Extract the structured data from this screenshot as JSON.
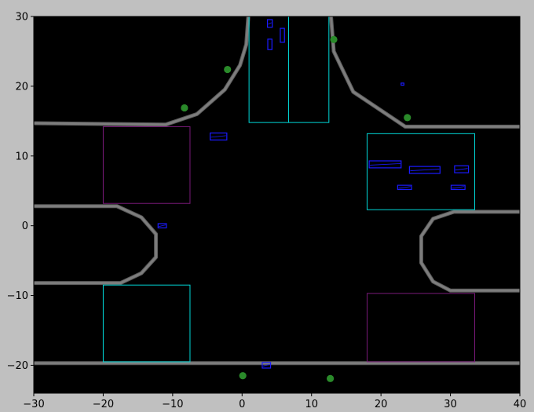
{
  "chart_data": {
    "type": "scatter",
    "title": "",
    "xlabel": "",
    "ylabel": "",
    "xlim": [
      -30,
      40
    ],
    "ylim": [
      -24,
      30
    ],
    "x_ticks": [
      -30,
      -20,
      -10,
      0,
      10,
      20,
      30,
      40
    ],
    "y_ticks": [
      -20,
      -10,
      0,
      10,
      20,
      30
    ],
    "grid": false,
    "legend": "none",
    "colors": {
      "figure_bg": "#c0c0c0",
      "axes_bg": "#000000",
      "road": "#7d7d7d",
      "road_edge": "#5a5a5a",
      "cyan_zone": "#00d8d8",
      "purple_zone": "#7a1a7a",
      "vehicle": "#1a1aff",
      "pedestrian": "#2a8a2a"
    },
    "road_edges": [
      {
        "name": "north-west-edge",
        "points": [
          [
            -30,
            14.7
          ],
          [
            -11,
            14.5
          ],
          [
            -6.5,
            16
          ],
          [
            -2.5,
            19.5
          ],
          [
            -0.3,
            23
          ],
          [
            0.6,
            26
          ],
          [
            0.9,
            30
          ]
        ]
      },
      {
        "name": "north-east-edge",
        "points": [
          [
            12.8,
            30
          ],
          [
            13.2,
            25
          ],
          [
            16,
            19.2
          ],
          [
            23.5,
            14.2
          ],
          [
            40,
            14.2
          ]
        ]
      },
      {
        "name": "west-mid-edge",
        "points": [
          [
            -30,
            2.8
          ],
          [
            -18,
            2.8
          ],
          [
            -14.5,
            1.2
          ],
          [
            -12.4,
            -1.2
          ],
          [
            -12.4,
            -4.5
          ],
          [
            -14.5,
            -6.8
          ],
          [
            -17.5,
            -8.2
          ],
          [
            -30,
            -8.2
          ]
        ]
      },
      {
        "name": "east-mid-edge",
        "points": [
          [
            40,
            2
          ],
          [
            30.5,
            2
          ],
          [
            27.5,
            1
          ],
          [
            25.8,
            -1.5
          ],
          [
            25.8,
            -5.3
          ],
          [
            27.5,
            -8
          ],
          [
            30,
            -9.3
          ],
          [
            40,
            -9.3
          ]
        ]
      },
      {
        "name": "south-edge",
        "points": [
          [
            -30,
            -19.7
          ],
          [
            40,
            -19.7
          ]
        ]
      }
    ],
    "zones": [
      {
        "name": "cyan-zone-north",
        "color": "cyan",
        "x": [
          1,
          12.5
        ],
        "y": [
          14.8,
          30
        ]
      },
      {
        "name": "cyan-zone-east",
        "color": "cyan",
        "x": [
          18,
          33.5
        ],
        "y": [
          2.3,
          13.2
        ]
      },
      {
        "name": "cyan-zone-southwest",
        "color": "cyan",
        "x": [
          -20,
          -7.5
        ],
        "y": [
          -19.5,
          -8.5
        ]
      },
      {
        "name": "purple-zone-northwest",
        "color": "purple",
        "x": [
          -20,
          -7.5
        ],
        "y": [
          3.2,
          14.2
        ]
      },
      {
        "name": "purple-zone-southeast",
        "color": "purple",
        "x": [
          18,
          33.5
        ],
        "y": [
          -19.5,
          -9.7
        ]
      }
    ],
    "dividers": [
      {
        "name": "north-zone-divider",
        "x": 6.7,
        "y": [
          14.8,
          30
        ]
      }
    ],
    "vehicles": [
      {
        "x": 4,
        "y": 29,
        "w": 0.7,
        "h": 1.1
      },
      {
        "x": 4,
        "y": 26,
        "w": 0.6,
        "h": 1.5
      },
      {
        "x": 5.8,
        "y": 27.3,
        "w": 0.6,
        "h": 2
      },
      {
        "x": -3.4,
        "y": 12.8,
        "w": 2.4,
        "h": 1
      },
      {
        "x": 20.6,
        "y": 8.8,
        "w": 4.6,
        "h": 1
      },
      {
        "x": 26.3,
        "y": 8,
        "w": 4.4,
        "h": 1
      },
      {
        "x": 31.6,
        "y": 8.1,
        "w": 2,
        "h": 1
      },
      {
        "x": 23.4,
        "y": 5.5,
        "w": 2,
        "h": 0.6
      },
      {
        "x": 31.1,
        "y": 5.5,
        "w": 2,
        "h": 0.6
      },
      {
        "x": -11.5,
        "y": 0,
        "w": 1.2,
        "h": 0.6
      },
      {
        "x": 3.5,
        "y": -20,
        "w": 1.2,
        "h": 0.8
      },
      {
        "x": 23.1,
        "y": 20.3,
        "w": 0.4,
        "h": 0.3
      }
    ],
    "pedestrians": [
      {
        "x": 13.2,
        "y": 26.7
      },
      {
        "x": -2.1,
        "y": 22.4
      },
      {
        "x": -8.3,
        "y": 16.9
      },
      {
        "x": 23.8,
        "y": 15.5
      },
      {
        "x": 0.1,
        "y": -21.5
      },
      {
        "x": 12.7,
        "y": -21.9
      }
    ]
  }
}
